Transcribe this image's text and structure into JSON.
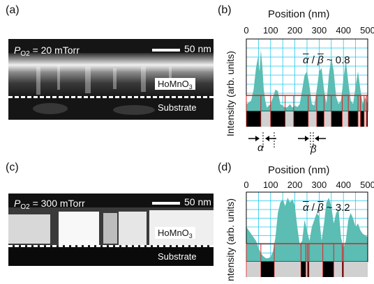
{
  "panels": {
    "a": {
      "label": "(a)",
      "pressure_prefix": "P",
      "pressure_sub": "O2",
      "pressure_text": " = 20 mTorr",
      "scale_text": "50 nm",
      "film_label": "HoMnO",
      "film_sub": "3",
      "substrate_label": "Substrate"
    },
    "b": {
      "label": "(b)",
      "x_title": "Position (nm)",
      "y_title": "Intensity (arb. units)",
      "ratio_alpha": "α",
      "ratio_beta": "β",
      "ratio_value": " ~ 0.8",
      "alpha_mark": "α",
      "beta_mark": "β"
    },
    "c": {
      "label": "(c)",
      "pressure_prefix": "P",
      "pressure_sub": "O2",
      "pressure_text": " = 300 mTorr",
      "scale_text": "50 nm",
      "film_label": "HoMnO",
      "film_sub": "3",
      "substrate_label": "Substrate"
    },
    "d": {
      "label": "(d)",
      "x_title": "Position (nm)",
      "y_title": "ntensity (arb. units)",
      "ratio_alpha": "α",
      "ratio_beta": "β",
      "ratio_value": " ~ 3.2"
    }
  },
  "colors": {
    "fill": "#5bbdb3",
    "grid": "#22c6e8",
    "threshold": "#e02020",
    "bar_dark": "#000000",
    "bar_light": "#d0d0d0"
  },
  "chart_data": [
    {
      "type": "area",
      "panel": "b",
      "x_ticks": [
        "0",
        "100",
        "200",
        "300",
        "400",
        "500"
      ],
      "xlim": [
        0,
        500
      ],
      "threshold_fraction": 0.22,
      "x": [
        0,
        10,
        20,
        30,
        40,
        48,
        55,
        60,
        66,
        72,
        78,
        85,
        92,
        100,
        110,
        120,
        130,
        140,
        150,
        160,
        170,
        180,
        190,
        200,
        210,
        220,
        230,
        240,
        250,
        260,
        270,
        280,
        290,
        300,
        310,
        320,
        330,
        340,
        350,
        360,
        370,
        380,
        390,
        400,
        410,
        420,
        430,
        440,
        450,
        460,
        470,
        480,
        490,
        500
      ],
      "y": [
        0.1,
        0.12,
        0.15,
        0.3,
        0.6,
        0.75,
        0.55,
        0.85,
        0.62,
        0.3,
        0.15,
        0.05,
        0.08,
        0.1,
        0.2,
        0.3,
        0.28,
        0.1,
        0.08,
        0.05,
        0.06,
        0.1,
        0.05,
        0.08,
        0.06,
        0.1,
        0.3,
        0.5,
        0.55,
        0.35,
        0.1,
        0.08,
        0.3,
        0.55,
        0.6,
        0.3,
        0.1,
        0.5,
        0.75,
        0.55,
        0.2,
        0.1,
        0.15,
        0.45,
        0.7,
        0.4,
        0.15,
        0.1,
        0.35,
        0.55,
        0.3,
        0.1,
        0.2,
        0.1
      ],
      "bars": [
        {
          "start": 0,
          "end": 60,
          "tone": "dark"
        },
        {
          "start": 60,
          "end": 100,
          "tone": "light"
        },
        {
          "start": 100,
          "end": 160,
          "tone": "dark"
        },
        {
          "start": 160,
          "end": 195,
          "tone": "light"
        },
        {
          "start": 195,
          "end": 255,
          "tone": "dark"
        },
        {
          "start": 255,
          "end": 290,
          "tone": "light"
        },
        {
          "start": 290,
          "end": 320,
          "tone": "dark"
        },
        {
          "start": 320,
          "end": 350,
          "tone": "light"
        },
        {
          "start": 350,
          "end": 395,
          "tone": "dark"
        },
        {
          "start": 395,
          "end": 420,
          "tone": "light"
        },
        {
          "start": 420,
          "end": 460,
          "tone": "dark"
        },
        {
          "start": 460,
          "end": 470,
          "tone": "light"
        },
        {
          "start": 470,
          "end": 485,
          "tone": "dark"
        },
        {
          "start": 485,
          "end": 495,
          "tone": "light"
        },
        {
          "start": 495,
          "end": 500,
          "tone": "dark"
        }
      ]
    },
    {
      "type": "area",
      "panel": "d",
      "x_ticks": [
        "0",
        "100",
        "200",
        "300",
        "400",
        "500"
      ],
      "xlim": [
        0,
        500
      ],
      "threshold_fraction": 0.26,
      "x": [
        0,
        10,
        20,
        30,
        40,
        50,
        60,
        70,
        80,
        90,
        100,
        110,
        120,
        130,
        140,
        150,
        160,
        170,
        180,
        190,
        200,
        210,
        220,
        230,
        240,
        250,
        260,
        270,
        280,
        290,
        300,
        310,
        320,
        330,
        340,
        350,
        360,
        370,
        380,
        390,
        400,
        410,
        420,
        430,
        440,
        450,
        460,
        470,
        480,
        490,
        500
      ],
      "y": [
        0.5,
        0.45,
        0.4,
        0.35,
        0.3,
        0.2,
        0.12,
        0.08,
        0.05,
        0.05,
        0.07,
        0.15,
        0.35,
        0.7,
        0.85,
        0.9,
        0.8,
        0.92,
        0.85,
        0.9,
        0.8,
        0.5,
        0.25,
        0.3,
        0.6,
        0.45,
        0.3,
        0.5,
        0.6,
        0.7,
        0.65,
        0.3,
        0.55,
        0.85,
        0.92,
        0.8,
        0.55,
        0.7,
        0.75,
        0.35,
        0.2,
        0.3,
        0.6,
        0.7,
        0.62,
        0.5,
        0.55,
        0.45,
        0.4,
        0.38,
        0.35
      ],
      "bars": [
        {
          "start": 0,
          "end": 60,
          "tone": "light"
        },
        {
          "start": 60,
          "end": 115,
          "tone": "dark"
        },
        {
          "start": 115,
          "end": 225,
          "tone": "light"
        },
        {
          "start": 225,
          "end": 245,
          "tone": "dark"
        },
        {
          "start": 245,
          "end": 252,
          "tone": "light"
        },
        {
          "start": 252,
          "end": 258,
          "tone": "dark"
        },
        {
          "start": 258,
          "end": 315,
          "tone": "light"
        },
        {
          "start": 315,
          "end": 360,
          "tone": "dark"
        },
        {
          "start": 360,
          "end": 395,
          "tone": "light"
        },
        {
          "start": 395,
          "end": 400,
          "tone": "dark"
        },
        {
          "start": 400,
          "end": 500,
          "tone": "light"
        }
      ]
    }
  ]
}
